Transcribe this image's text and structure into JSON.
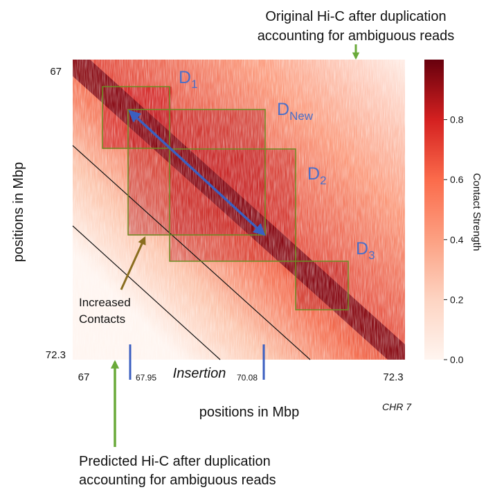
{
  "chart_data": {
    "type": "heatmap",
    "title": "",
    "colormap": "Reds",
    "colorbar": {
      "label": "Contact Strength",
      "ticks": [
        "0.0",
        "0.2",
        "0.4",
        "0.6",
        "0.8"
      ],
      "range": [
        0,
        1
      ]
    },
    "x_axis": {
      "label": "positions in Mbp",
      "ticks": [
        "67",
        "72.3"
      ],
      "range": [
        67,
        72.3
      ]
    },
    "y_axis": {
      "label": "positions in Mbp",
      "ticks": [
        "67",
        "72.3"
      ],
      "range": [
        67,
        72.3
      ]
    },
    "insertion": {
      "label": "Insertion",
      "start_label": "67.95",
      "end_label": "70.08",
      "start": 67.95,
      "end": 70.08
    },
    "chromosome_label": "CHR 7",
    "tads": [
      {
        "label_main": "D",
        "label_sub": "1",
        "start": 67.55,
        "end": 68.6
      },
      {
        "label_main": "D",
        "label_sub": "New",
        "start": 67.95,
        "end": 70.08
      },
      {
        "label_main": "D",
        "label_sub": "2",
        "start": 68.6,
        "end": 70.6
      },
      {
        "label_main": "D",
        "label_sub": "3",
        "start": 70.6,
        "end": 71.5
      }
    ],
    "annotations": {
      "top_line1": "Original Hi-C after duplication",
      "top_line2": "accounting for ambiguous reads",
      "bottom_line1": "Predicted Hi-C after duplication",
      "bottom_line2": "accounting for ambiguous reads",
      "increased_line1": "Increased",
      "increased_line2": "Contacts"
    },
    "colors": {
      "tad_box": "#6b8e23",
      "insertion": "#3b5fc0",
      "tad_label": "#4a6fc8",
      "green_arrow": "#6aaa3a",
      "brown_arrow": "#8a6d1e",
      "dark": "#67000d",
      "light": "#fff5f0"
    }
  }
}
